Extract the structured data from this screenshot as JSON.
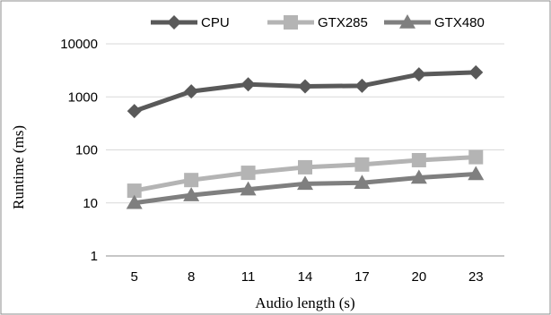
{
  "chart_data": {
    "type": "line",
    "title": "",
    "xlabel": "Audio length (s)",
    "ylabel": "Runtime (ms)",
    "y_scale": "log",
    "ylim": [
      1,
      10000
    ],
    "yticks": [
      "1",
      "10",
      "100",
      "1000",
      "10000"
    ],
    "categories": [
      "5",
      "8",
      "11",
      "14",
      "17",
      "20",
      "23"
    ],
    "grid": "horizontal",
    "legend_position": "top",
    "series": [
      {
        "name": "CPU",
        "marker": "diamond",
        "color": "#595959",
        "values": [
          540,
          1270,
          1720,
          1580,
          1620,
          2650,
          2900
        ]
      },
      {
        "name": "GTX285",
        "marker": "square",
        "color": "#b4b4b4",
        "values": [
          17,
          27,
          37,
          47,
          53,
          64,
          73
        ]
      },
      {
        "name": "GTX480",
        "marker": "triangle",
        "color": "#7f7f7f",
        "values": [
          10,
          14,
          18,
          23,
          24,
          30,
          35
        ]
      }
    ]
  }
}
